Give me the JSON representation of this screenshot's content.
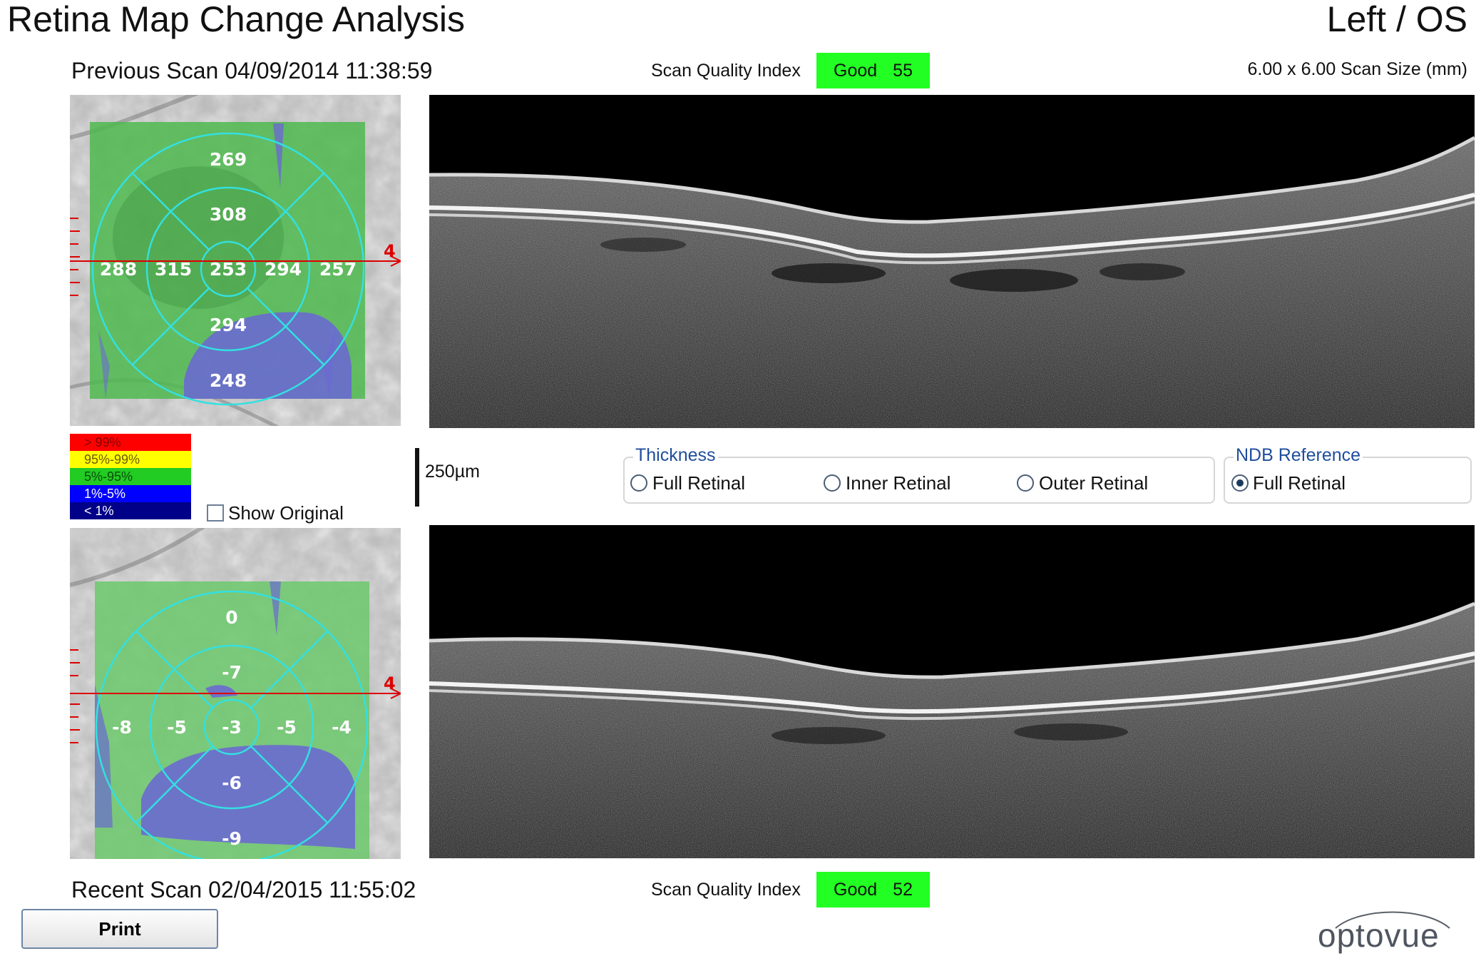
{
  "header": {
    "title": "Retina Map Change Analysis",
    "eye": "Left / OS"
  },
  "previous_scan": {
    "label": "Previous Scan 04/09/2014 11:38:59",
    "sqi_label": "Scan Quality Index",
    "sqi_status": "Good",
    "sqi_value": "55",
    "scan_size": "6.00 x 6.00 Scan Size (mm)",
    "sectors": {
      "superior_outer": "269",
      "superior_inner": "308",
      "temporal_outer": "288",
      "temporal_inner": "315",
      "center": "253",
      "nasal_inner": "294",
      "nasal_outer": "257",
      "inferior_inner": "294",
      "inferior_outer": "248"
    },
    "marker": "4"
  },
  "recent_scan": {
    "label": "Recent Scan 02/04/2015 11:55:02",
    "sqi_label": "Scan Quality Index",
    "sqi_status": "Good",
    "sqi_value": "52",
    "sectors": {
      "superior_outer": "0",
      "superior_inner": "-7",
      "temporal_outer": "-8",
      "temporal_inner": "-5",
      "center": "-3",
      "nasal_inner": "-5",
      "nasal_outer": "-4",
      "inferior_inner": "-6",
      "inferior_outer": "-9"
    },
    "marker": "4"
  },
  "legend": {
    "items": [
      {
        "label": "> 99%",
        "color": "#ff0000",
        "text_color": "#800000"
      },
      {
        "label": "95%-99%",
        "color": "#ffff00",
        "text_color": "#6b5c00"
      },
      {
        "label": "5%-95%",
        "color": "#22cc22",
        "text_color": "#0b4a0b"
      },
      {
        "label": "1%-5%",
        "color": "#0000ff",
        "text_color": "#ffffff"
      },
      {
        "label": "< 1%",
        "color": "#000088",
        "text_color": "#ffffff"
      }
    ]
  },
  "controls": {
    "show_original": "Show Original",
    "scale_label": "250µm",
    "thickness": {
      "title": "Thickness",
      "options": [
        "Full Retinal",
        "Inner Retinal",
        "Outer Retinal"
      ],
      "selected": ""
    },
    "ndb": {
      "title": "NDB Reference",
      "options": [
        "Full Retinal"
      ],
      "selected": "Full Retinal"
    },
    "print": "Print"
  },
  "brand": {
    "logo": "optovue"
  },
  "colors": {
    "sqi_good": "#22ff22",
    "grid": "#33e0e0",
    "scan_line": "#dd0000",
    "legend_title": "#1f4e9c"
  }
}
